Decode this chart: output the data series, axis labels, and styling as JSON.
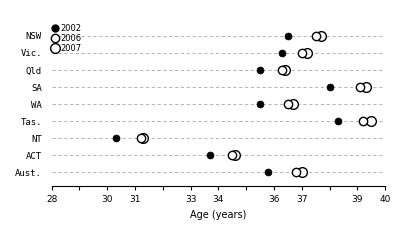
{
  "categories": [
    "NSW",
    "Vic.",
    "Qld",
    "SA",
    "WA",
    "Tas.",
    "NT",
    "ACT",
    "Aust."
  ],
  "data_2002": [
    36.5,
    36.3,
    35.5,
    38.0,
    35.5,
    38.3,
    30.3,
    33.7,
    35.8
  ],
  "data_2006": [
    37.5,
    37.0,
    36.3,
    39.1,
    36.5,
    39.2,
    31.2,
    34.5,
    36.8
  ],
  "data_2007": [
    37.7,
    37.2,
    36.4,
    39.3,
    36.7,
    39.5,
    31.3,
    34.6,
    37.0
  ],
  "xlim": [
    28,
    40
  ],
  "xticks": [
    28,
    29,
    30,
    31,
    32,
    33,
    34,
    35,
    36,
    37,
    38,
    39,
    40
  ],
  "xtick_labels": [
    "28",
    "",
    "30",
    "31",
    "",
    "33",
    "34",
    "",
    "36",
    "37",
    "",
    "39",
    "40"
  ],
  "xlabel": "Age (years)",
  "color_filled": "black",
  "color_open": "white",
  "legend_labels": [
    "2002",
    "2006",
    "2007"
  ],
  "grid_color": "#aaaaaa",
  "bg_color": "#ffffff",
  "marker_size_filled": 5,
  "marker_size_open": 7,
  "marker_edge_width": 1.0
}
